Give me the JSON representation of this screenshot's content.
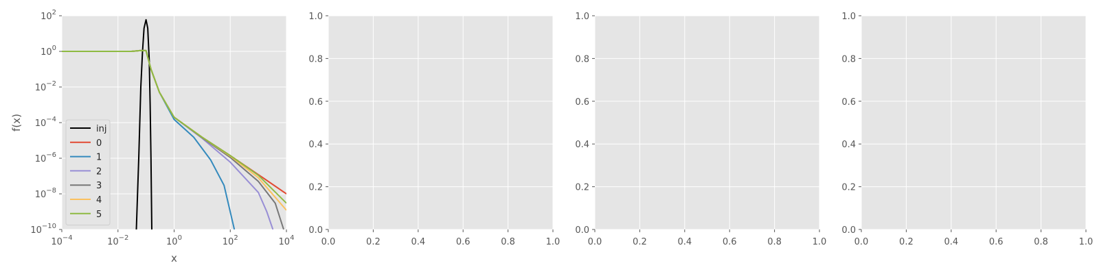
{
  "chart_data": [
    {
      "type": "line",
      "xscale": "log",
      "yscale": "log",
      "xlim": [
        0.0001,
        10000
      ],
      "ylim": [
        1e-10,
        100
      ],
      "xlabel": "x",
      "ylabel": "f(x)",
      "xticks": [
        {
          "value": 0.0001,
          "base": "10",
          "exp": "−4"
        },
        {
          "value": 0.01,
          "base": "10",
          "exp": "−2"
        },
        {
          "value": 1,
          "base": "10",
          "exp": "0"
        },
        {
          "value": 100,
          "base": "10",
          "exp": "2"
        },
        {
          "value": 10000,
          "base": "10",
          "exp": "4"
        }
      ],
      "yticks": [
        {
          "value": 1e-10,
          "base": "10",
          "exp": "−10"
        },
        {
          "value": 1e-08,
          "base": "10",
          "exp": "−8"
        },
        {
          "value": 1e-06,
          "base": "10",
          "exp": "−6"
        },
        {
          "value": 0.0001,
          "base": "10",
          "exp": "−4"
        },
        {
          "value": 0.01,
          "base": "10",
          "exp": "−2"
        },
        {
          "value": 1,
          "base": "10",
          "exp": "0"
        },
        {
          "value": 100,
          "base": "10",
          "exp": "2"
        }
      ],
      "grid": true,
      "legend": "lower-left",
      "series": [
        {
          "name": "inj",
          "color": "#000000",
          "points": [
            [
              0.045,
              1e-10
            ],
            [
              0.055,
              1e-06
            ],
            [
              0.065,
              0.01
            ],
            [
              0.075,
              1
            ],
            [
              0.085,
              20
            ],
            [
              0.1,
              60
            ],
            [
              0.115,
              20
            ],
            [
              0.13,
              0.3
            ],
            [
              0.14,
              0.001
            ],
            [
              0.15,
              1e-06
            ],
            [
              0.16,
              1e-10
            ]
          ]
        },
        {
          "name": "0",
          "color": "#e24a33",
          "points": [
            [
              0.0001,
              1
            ],
            [
              0.03,
              1
            ],
            [
              0.06,
              1.1
            ],
            [
              0.1,
              1.1
            ],
            [
              0.15,
              0.1
            ],
            [
              0.3,
              0.005
            ],
            [
              1,
              0.0002
            ],
            [
              10,
              1.5e-05
            ],
            [
              100,
              1.4e-06
            ],
            [
              1000,
              1.2e-07
            ],
            [
              10000,
              1e-08
            ]
          ]
        },
        {
          "name": "1",
          "color": "#348abd",
          "points": [
            [
              0.0001,
              1
            ],
            [
              0.03,
              1
            ],
            [
              0.06,
              1.1
            ],
            [
              0.1,
              1.1
            ],
            [
              0.15,
              0.1
            ],
            [
              0.3,
              0.005
            ],
            [
              1,
              0.00015
            ],
            [
              5,
              1.5e-05
            ],
            [
              20,
              8e-07
            ],
            [
              60,
              3e-08
            ],
            [
              140,
              1e-10
            ]
          ]
        },
        {
          "name": "2",
          "color": "#988ed5",
          "points": [
            [
              0.0001,
              1
            ],
            [
              0.03,
              1
            ],
            [
              0.06,
              1.1
            ],
            [
              0.1,
              1.1
            ],
            [
              0.15,
              0.1
            ],
            [
              0.3,
              0.005
            ],
            [
              1,
              0.0002
            ],
            [
              10,
              1.3e-05
            ],
            [
              100,
              6e-07
            ],
            [
              1000,
              1.2e-08
            ],
            [
              2000,
              1e-09
            ],
            [
              3300,
              1e-10
            ]
          ]
        },
        {
          "name": "3",
          "color": "#777777",
          "points": [
            [
              0.0001,
              1
            ],
            [
              0.03,
              1
            ],
            [
              0.06,
              1.1
            ],
            [
              0.1,
              1.1
            ],
            [
              0.15,
              0.1
            ],
            [
              0.3,
              0.005
            ],
            [
              1,
              0.0002
            ],
            [
              10,
              1.4e-05
            ],
            [
              100,
              1.1e-06
            ],
            [
              1000,
              5e-08
            ],
            [
              4000,
              3e-09
            ],
            [
              8000,
              1e-10
            ]
          ]
        },
        {
          "name": "4",
          "color": "#fbc15e",
          "points": [
            [
              0.0001,
              1
            ],
            [
              0.03,
              1
            ],
            [
              0.06,
              1.1
            ],
            [
              0.1,
              1.1
            ],
            [
              0.15,
              0.1
            ],
            [
              0.3,
              0.005
            ],
            [
              1,
              0.0002
            ],
            [
              10,
              1.5e-05
            ],
            [
              100,
              1.3e-06
            ],
            [
              1000,
              8e-08
            ],
            [
              10000,
              1.2e-09
            ]
          ]
        },
        {
          "name": "5",
          "color": "#8eba42",
          "points": [
            [
              0.0001,
              1
            ],
            [
              0.03,
              1
            ],
            [
              0.06,
              1.1
            ],
            [
              0.1,
              1.1
            ],
            [
              0.15,
              0.1
            ],
            [
              0.3,
              0.005
            ],
            [
              1,
              0.0002
            ],
            [
              10,
              1.5e-05
            ],
            [
              100,
              1.4e-06
            ],
            [
              1000,
              1.1e-07
            ],
            [
              10000,
              3e-09
            ]
          ]
        }
      ]
    },
    {
      "type": "line",
      "xlim": [
        0,
        1
      ],
      "ylim": [
        0,
        1
      ],
      "xticks": [
        "0.0",
        "0.2",
        "0.4",
        "0.6",
        "0.8",
        "1.0"
      ],
      "yticks": [
        "0.0",
        "0.2",
        "0.4",
        "0.6",
        "0.8",
        "1.0"
      ],
      "grid": true,
      "series": []
    },
    {
      "type": "line",
      "xlim": [
        0,
        1
      ],
      "ylim": [
        0,
        1
      ],
      "xticks": [
        "0.0",
        "0.2",
        "0.4",
        "0.6",
        "0.8",
        "1.0"
      ],
      "yticks": [
        "0.0",
        "0.2",
        "0.4",
        "0.6",
        "0.8",
        "1.0"
      ],
      "grid": true,
      "series": []
    },
    {
      "type": "line",
      "xlim": [
        0,
        1
      ],
      "ylim": [
        0,
        1
      ],
      "xticks": [
        "0.0",
        "0.2",
        "0.4",
        "0.6",
        "0.8",
        "1.0"
      ],
      "yticks": [
        "0.0",
        "0.2",
        "0.4",
        "0.6",
        "0.8",
        "1.0"
      ],
      "grid": true,
      "series": []
    }
  ]
}
